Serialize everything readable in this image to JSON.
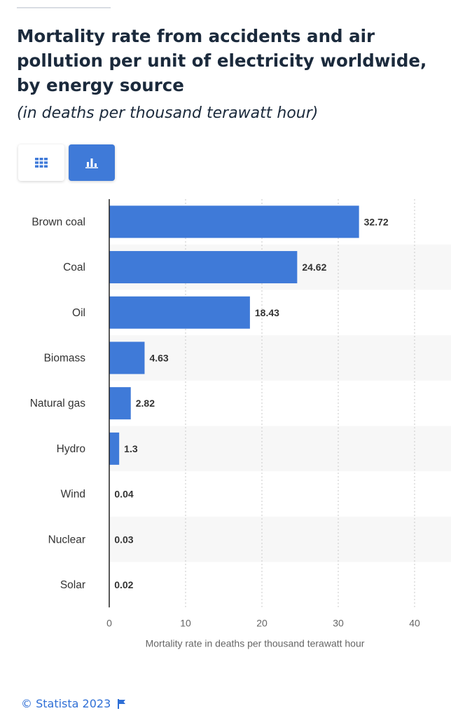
{
  "header": {
    "title": "Mortality rate from accidents and air pollution per unit of electricity worldwide, by energy source",
    "subtitle": "(in deaths per thousand terawatt hour)"
  },
  "toolbar": {
    "table_view_icon": "grid-icon",
    "chart_view_icon": "bar-chart-icon",
    "active_view": "chart"
  },
  "colors": {
    "bar": "#3f7ad8",
    "title": "#1b2a3c",
    "accent": "#2f6fd6",
    "row_shade": "#f7f7f7"
  },
  "chart_data": {
    "type": "bar",
    "orientation": "horizontal",
    "categories": [
      "Brown coal",
      "Coal",
      "Oil",
      "Biomass",
      "Natural gas",
      "Hydro",
      "Wind",
      "Nuclear",
      "Solar"
    ],
    "values": [
      32.72,
      24.62,
      18.43,
      4.63,
      2.82,
      1.3,
      0.04,
      0.03,
      0.02
    ],
    "value_labels": [
      "32.72",
      "24.62",
      "18.43",
      "4.63",
      "2.82",
      "1.3",
      "0.04",
      "0.03",
      "0.02"
    ],
    "xlabel": "Mortality rate in deaths per thousand terawatt hour",
    "ylabel": "",
    "xlim": [
      0,
      40
    ],
    "ticks": [
      0,
      10,
      20,
      30,
      40
    ],
    "tick_labels": [
      "0",
      "10",
      "20",
      "30",
      "40"
    ],
    "grid": "vertical dotted",
    "alternating_row_shading": true
  },
  "footer": {
    "copyright": "© Statista 2023",
    "flag_icon": "flag-icon"
  }
}
